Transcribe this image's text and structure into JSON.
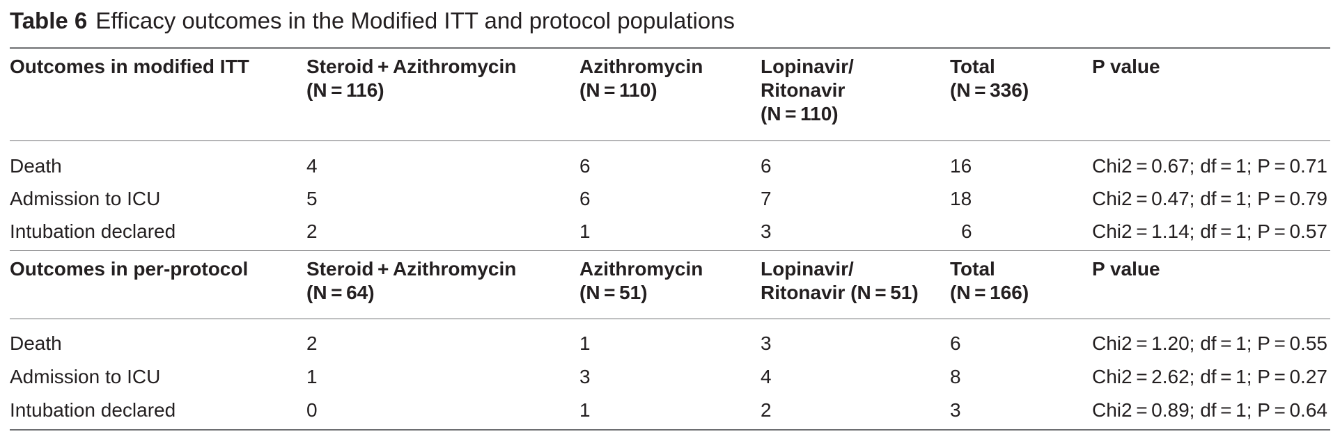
{
  "caption": {
    "label": "Table 6",
    "title": "Efficacy outcomes in the Modified ITT and protocol populations"
  },
  "section1": {
    "header": {
      "outcome": "Outcomes in modified ITT",
      "col1": [
        "Steroid + Azithromycin",
        "(N = 116)"
      ],
      "col2": [
        "Azithromycin",
        "(N = 110)"
      ],
      "col3": [
        "Lopinavir/",
        "Ritonavir",
        "(N = 110)"
      ],
      "col4": [
        "Total",
        "(N = 336)"
      ],
      "col5": [
        "P value"
      ]
    },
    "rows": [
      {
        "outcome": "Death",
        "v1": "4",
        "v2": "6",
        "v3": "6",
        "total": "16",
        "p": "Chi2 = 0.67; df = 1; P = 0.71"
      },
      {
        "outcome": "Admission to ICU",
        "v1": "5",
        "v2": "6",
        "v3": "7",
        "total": "18",
        "p": "Chi2 = 0.47; df = 1; P = 0.79"
      },
      {
        "outcome": "Intubation declared",
        "v1": "2",
        "v2": "1",
        "v3": "3",
        "total": "6",
        "p": "Chi2 = 1.14; df = 1; P = 0.57"
      }
    ]
  },
  "section2": {
    "header": {
      "outcome": "Outcomes in per-protocol",
      "col1": [
        "Steroid + Azithromycin",
        "(N = 64)"
      ],
      "col2": [
        "Azithromycin",
        "(N = 51)"
      ],
      "col3": [
        "Lopinavir/",
        "Ritonavir (N = 51)"
      ],
      "col4": [
        "Total",
        "(N = 166)"
      ],
      "col5": [
        "P value"
      ]
    },
    "rows": [
      {
        "outcome": "Death",
        "v1": "2",
        "v2": "1",
        "v3": "3",
        "total": "6",
        "p": "Chi2 = 1.20; df = 1; P = 0.55"
      },
      {
        "outcome": "Admission to ICU",
        "v1": "1",
        "v2": "3",
        "v3": "4",
        "total": "8",
        "p": "Chi2 = 2.62; df = 1; P = 0.27"
      },
      {
        "outcome": "Intubation declared",
        "v1": "0",
        "v2": "1",
        "v3": "2",
        "total": "3",
        "p": "Chi2 = 0.89; df = 1; P = 0.64"
      }
    ]
  }
}
